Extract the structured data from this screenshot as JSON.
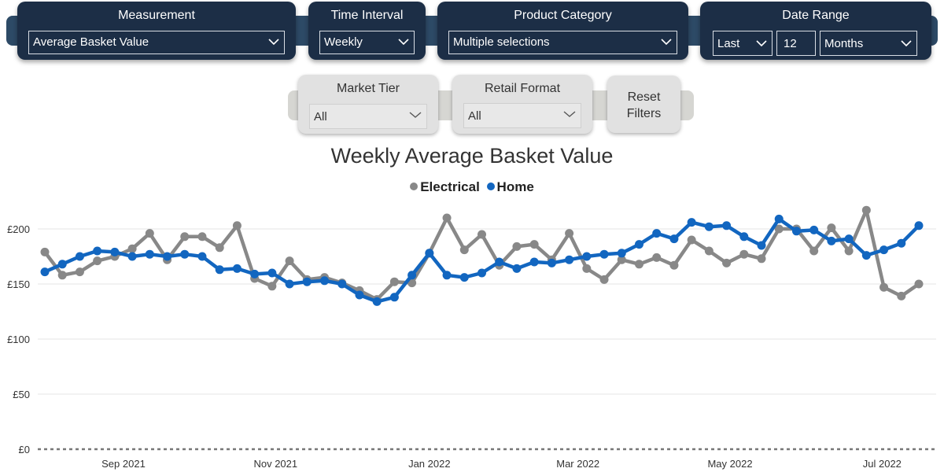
{
  "filters": {
    "measurement": {
      "title": "Measurement",
      "value": "Average Basket Value"
    },
    "time_interval": {
      "title": "Time Interval",
      "value": "Weekly"
    },
    "product_category": {
      "title": "Product Category",
      "value": "Multiple selections"
    },
    "date_range": {
      "title": "Date Range",
      "mode": "Last",
      "count": "12",
      "unit": "Months"
    },
    "market_tier": {
      "title": "Market Tier",
      "value": "All"
    },
    "retail_format": {
      "title": "Retail Format",
      "value": "All"
    },
    "reset": {
      "line1": "Reset",
      "line2": "Filters"
    }
  },
  "colors": {
    "electrical": "#888888",
    "home": "#1266c0",
    "header_bg": "#1c2e46",
    "band": "#2d4a66"
  },
  "chart_data": {
    "type": "line",
    "title": "Weekly Average Basket Value",
    "legend_position": "top-center",
    "x_tick_labels": [
      "Sep 2021",
      "Nov 2021",
      "Jan 2022",
      "Mar 2022",
      "May 2022",
      "Jul 2022"
    ],
    "x_tick_week_index": [
      4.5,
      13.2,
      22,
      30.5,
      39.2,
      47.9
    ],
    "y_ticks": [
      0,
      50,
      100,
      150,
      200
    ],
    "y_tick_labels": [
      "£0",
      "£50",
      "£100",
      "£150",
      "£200"
    ],
    "ylim": [
      0,
      215
    ],
    "grid": true,
    "series": [
      {
        "name": "Electrical",
        "values": [
          179,
          158,
          161,
          171,
          175,
          182,
          196,
          172,
          193,
          193,
          183,
          203,
          155,
          148,
          171,
          154,
          156,
          151,
          144,
          136,
          152,
          151,
          178,
          210,
          181,
          195,
          167,
          184,
          186,
          172,
          196,
          164,
          154,
          172,
          168,
          174,
          167,
          190,
          180,
          169,
          177,
          173,
          200,
          200,
          180,
          201,
          180,
          217,
          147,
          139,
          150
        ]
      },
      {
        "name": "Home",
        "values": [
          161,
          168,
          175,
          180,
          179,
          175,
          177,
          175,
          177,
          175,
          163,
          164,
          159,
          160,
          150,
          152,
          153,
          150,
          140,
          134,
          138,
          158,
          178,
          158,
          156,
          160,
          170,
          164,
          170,
          169,
          172,
          175,
          177,
          178,
          186,
          196,
          191,
          206,
          202,
          203,
          193,
          185,
          209,
          198,
          199,
          189,
          191,
          176,
          181,
          187,
          203
        ]
      }
    ]
  }
}
